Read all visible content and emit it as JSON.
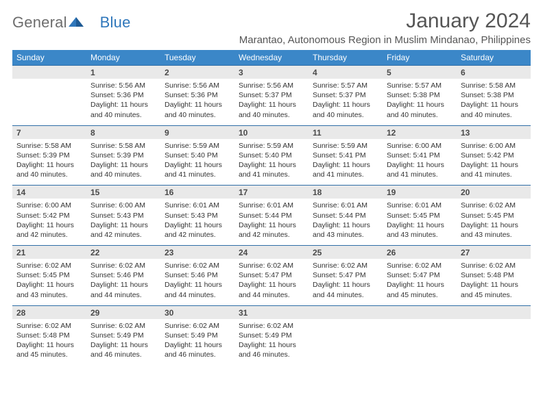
{
  "logo": {
    "word1": "General",
    "word2": "Blue"
  },
  "title": "January 2024",
  "location": "Marantao, Autonomous Region in Muslim Mindanao, Philippines",
  "colors": {
    "header_bg": "#3b87c8",
    "header_text": "#ffffff",
    "row_stripe": "#e9e9e9",
    "divider": "#2f6ea7",
    "title_text": "#555555",
    "body_text": "#333333",
    "logo_grey": "#6d6d6d",
    "logo_blue": "#2f77bb"
  },
  "typography": {
    "title_fontsize": 30,
    "location_fontsize": 15,
    "dow_fontsize": 12,
    "daynum_fontsize": 12,
    "detail_fontsize": 10.5
  },
  "layout": {
    "columns": 7,
    "weeks": 5,
    "start_offset": 1,
    "days_in_month": 31
  },
  "days_of_week": [
    "Sunday",
    "Monday",
    "Tuesday",
    "Wednesday",
    "Thursday",
    "Friday",
    "Saturday"
  ],
  "days": [
    {
      "n": 1,
      "sunrise": "5:56 AM",
      "sunset": "5:36 PM",
      "daylight": "11 hours and 40 minutes."
    },
    {
      "n": 2,
      "sunrise": "5:56 AM",
      "sunset": "5:36 PM",
      "daylight": "11 hours and 40 minutes."
    },
    {
      "n": 3,
      "sunrise": "5:56 AM",
      "sunset": "5:37 PM",
      "daylight": "11 hours and 40 minutes."
    },
    {
      "n": 4,
      "sunrise": "5:57 AM",
      "sunset": "5:37 PM",
      "daylight": "11 hours and 40 minutes."
    },
    {
      "n": 5,
      "sunrise": "5:57 AM",
      "sunset": "5:38 PM",
      "daylight": "11 hours and 40 minutes."
    },
    {
      "n": 6,
      "sunrise": "5:58 AM",
      "sunset": "5:38 PM",
      "daylight": "11 hours and 40 minutes."
    },
    {
      "n": 7,
      "sunrise": "5:58 AM",
      "sunset": "5:39 PM",
      "daylight": "11 hours and 40 minutes."
    },
    {
      "n": 8,
      "sunrise": "5:58 AM",
      "sunset": "5:39 PM",
      "daylight": "11 hours and 40 minutes."
    },
    {
      "n": 9,
      "sunrise": "5:59 AM",
      "sunset": "5:40 PM",
      "daylight": "11 hours and 41 minutes."
    },
    {
      "n": 10,
      "sunrise": "5:59 AM",
      "sunset": "5:40 PM",
      "daylight": "11 hours and 41 minutes."
    },
    {
      "n": 11,
      "sunrise": "5:59 AM",
      "sunset": "5:41 PM",
      "daylight": "11 hours and 41 minutes."
    },
    {
      "n": 12,
      "sunrise": "6:00 AM",
      "sunset": "5:41 PM",
      "daylight": "11 hours and 41 minutes."
    },
    {
      "n": 13,
      "sunrise": "6:00 AM",
      "sunset": "5:42 PM",
      "daylight": "11 hours and 41 minutes."
    },
    {
      "n": 14,
      "sunrise": "6:00 AM",
      "sunset": "5:42 PM",
      "daylight": "11 hours and 42 minutes."
    },
    {
      "n": 15,
      "sunrise": "6:00 AM",
      "sunset": "5:43 PM",
      "daylight": "11 hours and 42 minutes."
    },
    {
      "n": 16,
      "sunrise": "6:01 AM",
      "sunset": "5:43 PM",
      "daylight": "11 hours and 42 minutes."
    },
    {
      "n": 17,
      "sunrise": "6:01 AM",
      "sunset": "5:44 PM",
      "daylight": "11 hours and 42 minutes."
    },
    {
      "n": 18,
      "sunrise": "6:01 AM",
      "sunset": "5:44 PM",
      "daylight": "11 hours and 43 minutes."
    },
    {
      "n": 19,
      "sunrise": "6:01 AM",
      "sunset": "5:45 PM",
      "daylight": "11 hours and 43 minutes."
    },
    {
      "n": 20,
      "sunrise": "6:02 AM",
      "sunset": "5:45 PM",
      "daylight": "11 hours and 43 minutes."
    },
    {
      "n": 21,
      "sunrise": "6:02 AM",
      "sunset": "5:45 PM",
      "daylight": "11 hours and 43 minutes."
    },
    {
      "n": 22,
      "sunrise": "6:02 AM",
      "sunset": "5:46 PM",
      "daylight": "11 hours and 44 minutes."
    },
    {
      "n": 23,
      "sunrise": "6:02 AM",
      "sunset": "5:46 PM",
      "daylight": "11 hours and 44 minutes."
    },
    {
      "n": 24,
      "sunrise": "6:02 AM",
      "sunset": "5:47 PM",
      "daylight": "11 hours and 44 minutes."
    },
    {
      "n": 25,
      "sunrise": "6:02 AM",
      "sunset": "5:47 PM",
      "daylight": "11 hours and 44 minutes."
    },
    {
      "n": 26,
      "sunrise": "6:02 AM",
      "sunset": "5:47 PM",
      "daylight": "11 hours and 45 minutes."
    },
    {
      "n": 27,
      "sunrise": "6:02 AM",
      "sunset": "5:48 PM",
      "daylight": "11 hours and 45 minutes."
    },
    {
      "n": 28,
      "sunrise": "6:02 AM",
      "sunset": "5:48 PM",
      "daylight": "11 hours and 45 minutes."
    },
    {
      "n": 29,
      "sunrise": "6:02 AM",
      "sunset": "5:49 PM",
      "daylight": "11 hours and 46 minutes."
    },
    {
      "n": 30,
      "sunrise": "6:02 AM",
      "sunset": "5:49 PM",
      "daylight": "11 hours and 46 minutes."
    },
    {
      "n": 31,
      "sunrise": "6:02 AM",
      "sunset": "5:49 PM",
      "daylight": "11 hours and 46 minutes."
    }
  ],
  "labels": {
    "sunrise": "Sunrise:",
    "sunset": "Sunset:",
    "daylight": "Daylight:"
  }
}
